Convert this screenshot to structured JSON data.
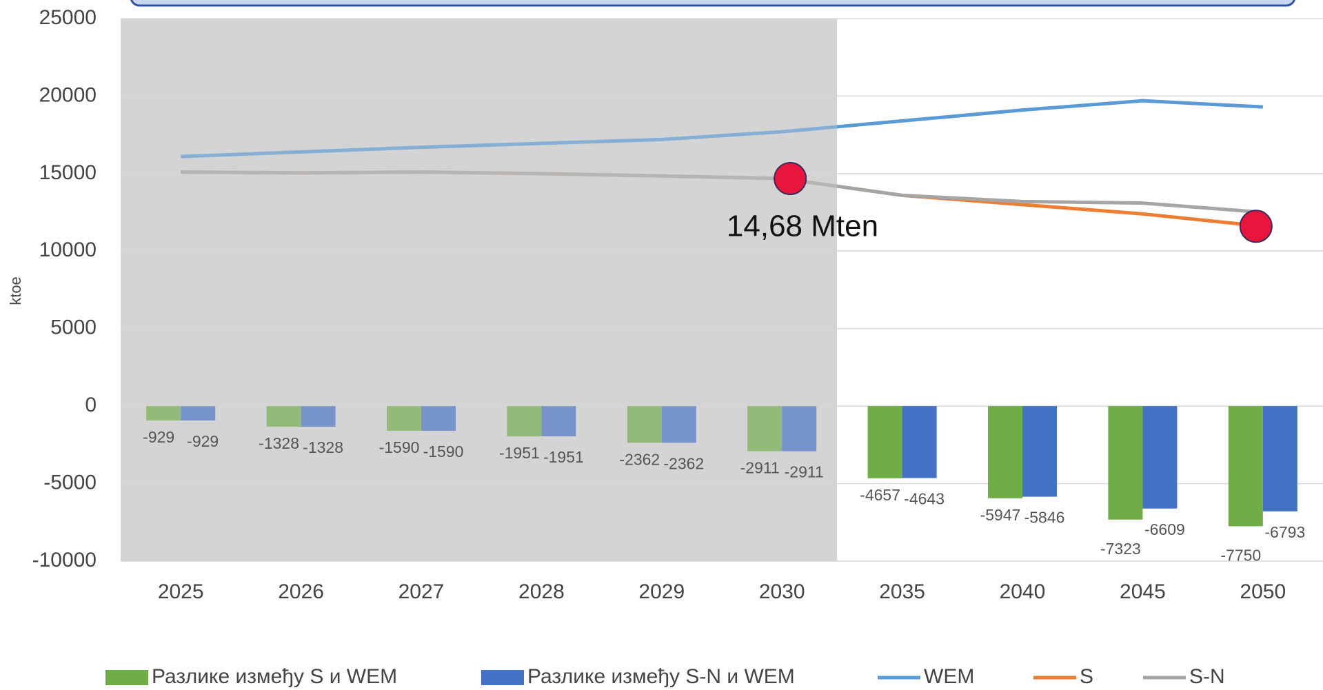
{
  "chart_data": {
    "type": "combo",
    "ylabel": "ktoe",
    "annotation": "14,68 Mten",
    "categories": [
      "2025",
      "2026",
      "2027",
      "2028",
      "2029",
      "2030",
      "2035",
      "2040",
      "2045",
      "2050"
    ],
    "ylim": [
      -10000,
      25000
    ],
    "yticks": [
      -10000,
      -5000,
      0,
      5000,
      10000,
      15000,
      20000,
      25000
    ],
    "grid": true,
    "legend": "bottom",
    "series": [
      {
        "name": "Разлике између S и WEM",
        "kind": "bar",
        "color": "#70ad47",
        "values": [
          -929,
          -1328,
          -1590,
          -1951,
          -2362,
          -2911,
          -4657,
          -5947,
          -7323,
          -7750
        ]
      },
      {
        "name": "Разлике између S-N и WEM",
        "kind": "bar",
        "color": "#4472c4",
        "values": [
          -929,
          -1328,
          -1590,
          -1951,
          -2362,
          -2911,
          -4643,
          -5846,
          -6609,
          -6793
        ]
      },
      {
        "name": "WEM",
        "kind": "line",
        "color": "#5b9bd5",
        "values": [
          16100,
          16400,
          16700,
          16950,
          17200,
          17700,
          18400,
          19100,
          19700,
          19300
        ]
      },
      {
        "name": "S",
        "kind": "line",
        "color": "#ed7d31",
        "values": [
          15100,
          15050,
          15100,
          15000,
          14850,
          14680,
          13600,
          13000,
          12400,
          11600
        ]
      },
      {
        "name": "S-N",
        "kind": "line",
        "color": "#a5a5a5",
        "values": [
          15100,
          15050,
          15100,
          15000,
          14850,
          14680,
          13600,
          13200,
          13100,
          12500
        ]
      }
    ]
  }
}
